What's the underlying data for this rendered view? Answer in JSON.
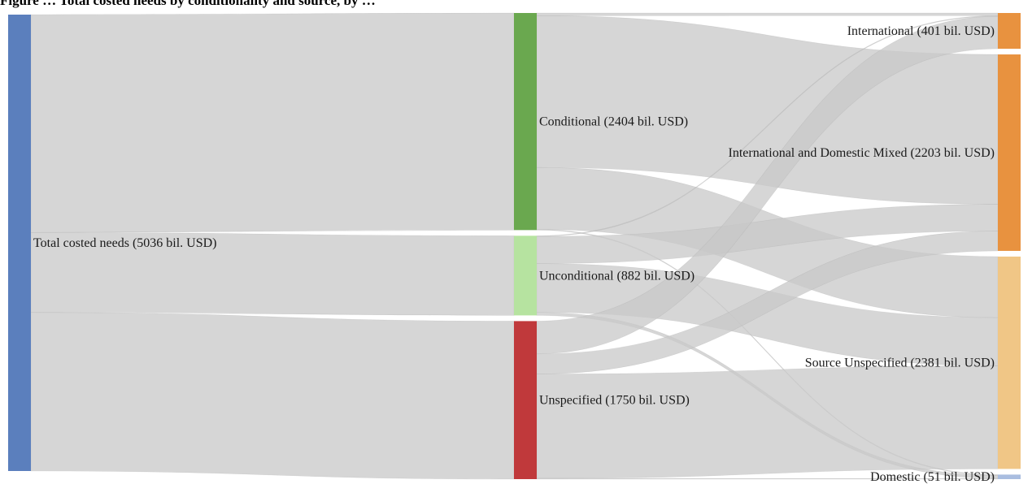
{
  "caption": "Figure … Total costed needs by conditionality and source, by …",
  "chart_data": {
    "type": "sankey",
    "title": "",
    "unit": "bil. USD",
    "nodes": [
      {
        "id": "total",
        "label": "Total costed needs (5036 bil. USD)",
        "value": 5036,
        "color": "#5b7fbd"
      },
      {
        "id": "conditional",
        "label": "Conditional (2404 bil. USD)",
        "value": 2404,
        "color": "#6aa84f"
      },
      {
        "id": "unconditional",
        "label": "Unconditional (882 bil. USD)",
        "value": 882,
        "color": "#b6e3a0"
      },
      {
        "id": "unspecified",
        "label": "Unspecified (1750 bil. USD)",
        "value": 1750,
        "color": "#c0393b"
      },
      {
        "id": "international",
        "label": "International (401 bil. USD)",
        "value": 401,
        "color": "#e8923f"
      },
      {
        "id": "mixed",
        "label": "International and Domestic Mixed (2203 bil. USD)",
        "value": 2203,
        "color": "#e8923f"
      },
      {
        "id": "source_unspecified",
        "label": "Source Unspecified (2381 bil. USD)",
        "value": 2381,
        "color": "#f0c686"
      },
      {
        "id": "domestic",
        "label": "Domestic (51 bil. USD)",
        "value": 51,
        "color": "#a9bde0"
      }
    ],
    "links": [
      {
        "source": "total",
        "target": "conditional",
        "value": 2404
      },
      {
        "source": "total",
        "target": "unconditional",
        "value": 882
      },
      {
        "source": "total",
        "target": "unspecified",
        "value": 1750
      },
      {
        "source": "conditional",
        "target": "international",
        "value": 30
      },
      {
        "source": "conditional",
        "target": "mixed",
        "value": 1680
      },
      {
        "source": "conditional",
        "target": "source_unspecified",
        "value": 685
      },
      {
        "source": "conditional",
        "target": "domestic",
        "value": 9
      },
      {
        "source": "unconditional",
        "target": "international",
        "value": 8
      },
      {
        "source": "unconditional",
        "target": "mixed",
        "value": 300
      },
      {
        "source": "unconditional",
        "target": "source_unspecified",
        "value": 540
      },
      {
        "source": "unconditional",
        "target": "domestic",
        "value": 34
      },
      {
        "source": "unspecified",
        "target": "international",
        "value": 363
      },
      {
        "source": "unspecified",
        "target": "mixed",
        "value": 223
      },
      {
        "source": "unspecified",
        "target": "source_unspecified",
        "value": 1156
      },
      {
        "source": "unspecified",
        "target": "domestic",
        "value": 8
      }
    ],
    "link_color": "#c8c8c8"
  }
}
